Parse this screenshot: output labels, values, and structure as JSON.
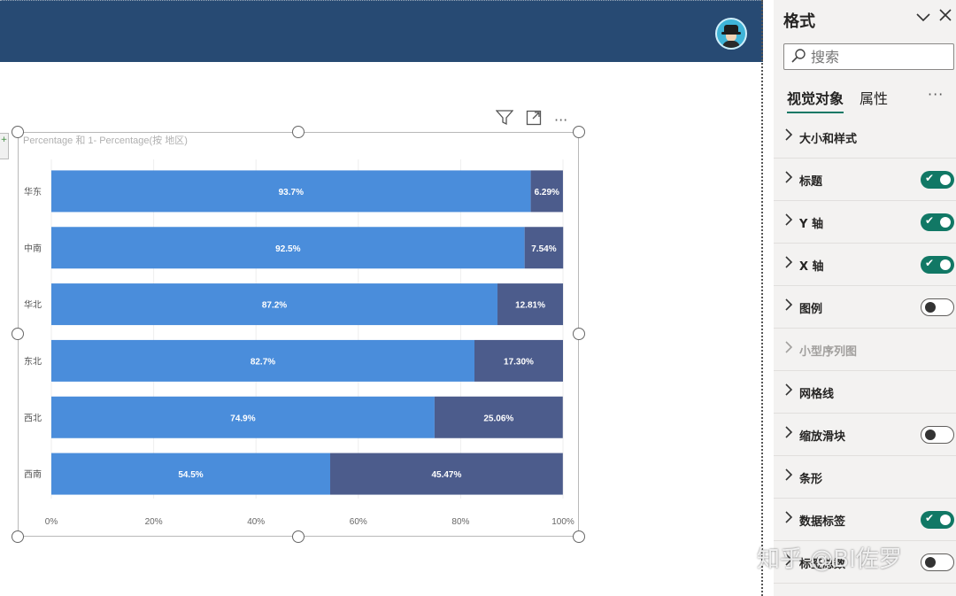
{
  "header": {
    "avatar_icon": "detective-avatar-icon",
    "bg_color": "#274a73"
  },
  "visual": {
    "toolbar_icons": [
      "filter-icon",
      "focus-mode-icon",
      "more-options-icon"
    ],
    "more_glyph": "···",
    "title": "Percentage 和 1- Percentage(按 地区)"
  },
  "chart_data": {
    "type": "bar",
    "stacked": true,
    "orientation": "horizontal",
    "categories": [
      "华东",
      "中南",
      "华北",
      "东北",
      "西北",
      "西南"
    ],
    "series": [
      {
        "values": [
          93.7,
          92.5,
          87.2,
          82.7,
          74.9,
          54.5
        ],
        "labels": [
          "93.7%",
          "92.5%",
          "87.2%",
          "82.7%",
          "74.9%",
          "54.5%"
        ],
        "color": "#4a8ddb"
      },
      {
        "values": [
          6.29,
          7.54,
          12.81,
          17.3,
          25.06,
          45.47
        ],
        "labels": [
          "6.29%",
          "7.54%",
          "12.81%",
          "17.30%",
          "25.06%",
          "45.47%"
        ],
        "color": "#4c5c8c"
      }
    ],
    "x_ticks": [
      "0%",
      "20%",
      "40%",
      "60%",
      "80%",
      "100%"
    ],
    "xlim": [
      0,
      100
    ],
    "grid": "vertical",
    "legend": "none"
  },
  "pane": {
    "title": "格式",
    "search_placeholder": "搜索",
    "tabs": [
      {
        "label": "视觉对象",
        "active": true
      },
      {
        "label": "属性",
        "active": false
      }
    ],
    "more": "···",
    "sections": [
      {
        "label": "大小和样式",
        "toggle": "none"
      },
      {
        "label": "标题",
        "toggle": "on"
      },
      {
        "label": "Y 轴",
        "toggle": "on"
      },
      {
        "label": "X 轴",
        "toggle": "on"
      },
      {
        "label": "图例",
        "toggle": "off"
      },
      {
        "label": "小型序列图",
        "toggle": "none",
        "disabled": true
      },
      {
        "label": "网格线",
        "toggle": "none"
      },
      {
        "label": "缩放滑块",
        "toggle": "off"
      },
      {
        "label": "条形",
        "toggle": "none"
      },
      {
        "label": "数据标签",
        "toggle": "on"
      },
      {
        "label": "标签总数",
        "toggle": "off"
      }
    ],
    "accent_color": "#117865"
  },
  "watermark": "知乎 @BI佐罗"
}
